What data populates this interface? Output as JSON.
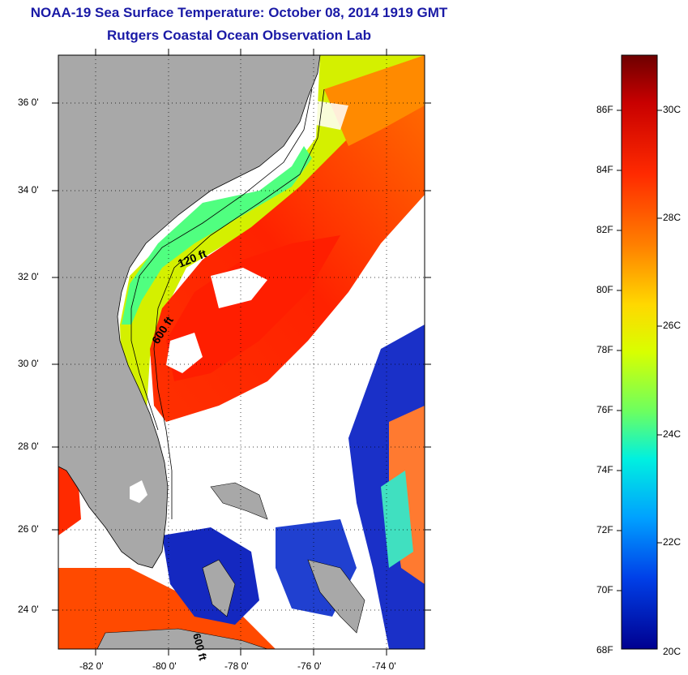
{
  "title": "NOAA-19 Sea Surface Temperature:  October 08, 2014 1919 GMT",
  "subtitle": "Rutgers Coastal Ocean Observation Lab",
  "map": {
    "lat_labels": [
      "36 0'",
      "34 0'",
      "32 0'",
      "30 0'",
      "28 0'",
      "26 0'",
      "24 0'"
    ],
    "lon_labels": [
      "-82 0'",
      "-80 0'",
      "-78 0'",
      "-76 0'",
      "-74 0'"
    ],
    "isobath_labels": [
      "120 ft",
      "600 ft",
      "600 ft"
    ],
    "colors": {
      "land": "#a8a8a8",
      "frame": "#000000",
      "grid": "#000000"
    }
  },
  "colorbar": {
    "fahrenheit_labels": [
      "86F",
      "84F",
      "82F",
      "80F",
      "78F",
      "76F",
      "74F",
      "72F",
      "70F",
      "68F"
    ],
    "celsius_labels": [
      "30C",
      "28C",
      "26C",
      "24C",
      "22C",
      "20C"
    ],
    "min_c": 20,
    "max_c": 31.5,
    "colors": [
      "#7a0000",
      "#c40000",
      "#ff2a00",
      "#ff7a00",
      "#ffd000",
      "#e6ff00",
      "#7cff50",
      "#00ffd0",
      "#00b4ff",
      "#005aff",
      "#0000b4",
      "#000080"
    ]
  }
}
